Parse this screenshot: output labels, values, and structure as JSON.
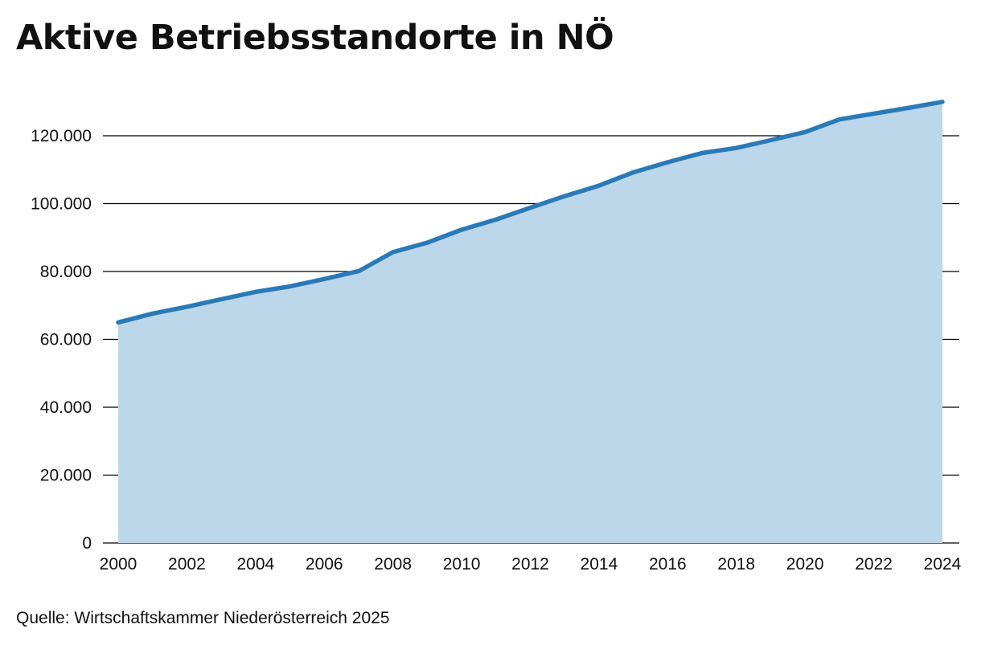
{
  "title": "Aktive Betriebsstandorte in NÖ",
  "source": "Quelle: Wirtschaftskammer Niederösterreich 2025",
  "colors": {
    "line": "#2a7ab8",
    "fill": "#bcd6ea",
    "grid": "#000000"
  },
  "chart_data": {
    "type": "area",
    "title": "Aktive Betriebsstandorte in NÖ",
    "xlabel": "",
    "ylabel": "",
    "x": [
      2000,
      2001,
      2002,
      2003,
      2004,
      2005,
      2006,
      2007,
      2008,
      2009,
      2010,
      2011,
      2012,
      2013,
      2014,
      2015,
      2016,
      2017,
      2018,
      2019,
      2020,
      2021,
      2022,
      2023,
      2024
    ],
    "values": [
      65000,
      67600,
      69600,
      71800,
      74000,
      75600,
      77800,
      80100,
      85700,
      88500,
      92300,
      95300,
      98800,
      102200,
      105300,
      109200,
      112200,
      114900,
      116400,
      118700,
      121100,
      124800,
      126500,
      128200,
      130000
    ],
    "xticks": [
      "2000",
      "2002",
      "2004",
      "2006",
      "2008",
      "2010",
      "2012",
      "2014",
      "2016",
      "2018",
      "2020",
      "2022",
      "2024"
    ],
    "xtick_values": [
      2000,
      2002,
      2004,
      2006,
      2008,
      2010,
      2012,
      2014,
      2016,
      2018,
      2020,
      2022,
      2024
    ],
    "yticks": [
      "0",
      "20.000",
      "40.000",
      "60.000",
      "80.000",
      "100.000",
      "120.000"
    ],
    "ytick_values": [
      0,
      20000,
      40000,
      60000,
      80000,
      100000,
      120000
    ],
    "xlim": [
      2000,
      2024
    ],
    "ylim": [
      0,
      130000
    ],
    "grid": true
  }
}
